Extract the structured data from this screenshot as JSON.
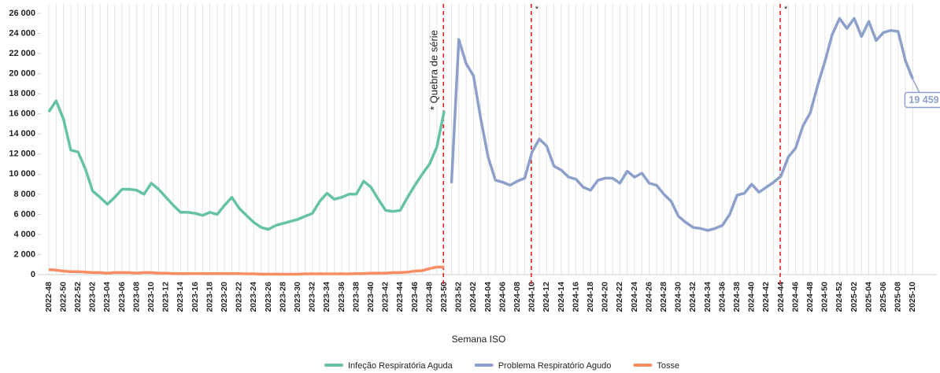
{
  "chart_data": {
    "type": "line",
    "x_label": "Semana ISO",
    "categories": [
      "2022-48",
      null,
      "2022-50",
      null,
      "2022-52",
      null,
      "2023-02",
      null,
      "2023-04",
      null,
      "2023-06",
      null,
      "2023-08",
      null,
      "2023-10",
      null,
      "2023-12",
      null,
      "2023-14",
      null,
      "2023-16",
      null,
      "2023-18",
      null,
      "2023-20",
      null,
      "2023-22",
      null,
      "2023-24",
      null,
      "2023-26",
      null,
      "2023-28",
      null,
      "2023-30",
      null,
      "2023-32",
      null,
      "2023-34",
      null,
      "2023-36",
      null,
      "2023-38",
      null,
      "2023-40",
      null,
      "2023-42",
      null,
      "2023-44",
      null,
      "2023-46",
      null,
      "2023-48",
      null,
      "2023-50",
      null,
      "2023-52",
      null,
      "2024-02",
      null,
      "2024-04",
      null,
      "2024-06",
      null,
      "2024-08",
      null,
      "2024-10",
      null,
      "2024-12",
      null,
      "2024-14",
      null,
      "2024-16",
      null,
      "2024-18",
      null,
      "2024-20",
      null,
      "2024-22",
      null,
      "2024-24",
      null,
      "2024-26",
      null,
      "2024-28",
      null,
      "2024-30",
      null,
      "2024-32",
      null,
      "2024-34",
      null,
      "2024-36",
      null,
      "2024-38",
      null,
      "2024-40",
      null,
      "2024-42",
      null,
      "2024-44",
      null,
      "2024-46",
      null,
      "2024-48",
      null,
      "2024-50",
      null,
      "2024-52",
      null,
      "2025-02",
      null,
      "2025-04",
      null,
      "2025-06",
      null,
      "2025-08",
      null,
      "2025-10"
    ],
    "series": [
      {
        "name": "Infeção Respiratória Aguda",
        "color": "#66c2a5",
        "values": [
          16200,
          17300,
          15500,
          12400,
          12200,
          10500,
          8300,
          7700,
          7000,
          7700,
          8500,
          8500,
          8400,
          8000,
          9100,
          8500,
          7700,
          6900,
          6200,
          6200,
          6100,
          5900,
          6200,
          6000,
          6900,
          7700,
          6600,
          5900,
          5200,
          4700,
          4500,
          4900,
          5100,
          5300,
          5500,
          5800,
          6100,
          7300,
          8100,
          7500,
          7700,
          8000,
          8000,
          9300,
          8700,
          7500,
          6400,
          6300,
          6400,
          7700,
          8900,
          10000,
          11000,
          12700,
          16300,
          null,
          null,
          null,
          null,
          null,
          null,
          null,
          null,
          null,
          null,
          null,
          null,
          null,
          null,
          null,
          null,
          null,
          null,
          null,
          null,
          null,
          null,
          null,
          null,
          null,
          null,
          null,
          null,
          null,
          null,
          null,
          null,
          null,
          null,
          null,
          null,
          null,
          null,
          null,
          null,
          null,
          null,
          null,
          null,
          null,
          null,
          null,
          null,
          null,
          null,
          null,
          null,
          null,
          null,
          null,
          null,
          null,
          null,
          null,
          null,
          null,
          null,
          null,
          null
        ]
      },
      {
        "name": "Problema Respiratório Agudo",
        "color": "#8da0cb",
        "values": [
          null,
          null,
          null,
          null,
          null,
          null,
          null,
          null,
          null,
          null,
          null,
          null,
          null,
          null,
          null,
          null,
          null,
          null,
          null,
          null,
          null,
          null,
          null,
          null,
          null,
          null,
          null,
          null,
          null,
          null,
          null,
          null,
          null,
          null,
          null,
          null,
          null,
          null,
          null,
          null,
          null,
          null,
          null,
          null,
          null,
          null,
          null,
          null,
          null,
          null,
          null,
          null,
          null,
          null,
          null,
          9100,
          23400,
          21000,
          19800,
          15500,
          11700,
          9400,
          9200,
          8900,
          9300,
          9600,
          12200,
          13500,
          12800,
          10800,
          10400,
          9700,
          9500,
          8700,
          8400,
          9400,
          9600,
          9600,
          9100,
          10300,
          9700,
          10100,
          9100,
          8900,
          8000,
          7300,
          5800,
          5200,
          4700,
          4600,
          4400,
          4600,
          4900,
          6000,
          7900,
          8100,
          9000,
          8200,
          8700,
          9200,
          9800,
          11700,
          12600,
          14800,
          16100,
          18800,
          21200,
          23900,
          25500,
          24500,
          25500,
          23700,
          25200,
          23300,
          24100,
          24300,
          24200,
          21300,
          19459
        ],
        "value_labels": [
          null,
          null,
          null,
          null,
          null,
          null,
          null,
          null,
          null,
          null,
          null,
          null,
          null,
          null,
          null,
          null,
          null,
          null,
          null,
          null,
          null,
          null,
          null,
          null,
          null,
          null,
          null,
          null,
          null,
          null,
          null,
          null,
          null,
          null,
          null,
          null,
          null,
          null,
          null,
          null,
          null,
          null,
          null,
          null,
          null,
          null,
          null,
          null,
          null,
          null,
          null,
          null,
          null,
          null,
          null,
          null,
          null,
          null,
          null,
          null,
          null,
          null,
          null,
          null,
          null,
          null,
          null,
          null,
          null,
          null,
          null,
          null,
          null,
          null,
          null,
          null,
          null,
          null,
          null,
          null,
          null,
          null,
          null,
          null,
          null,
          null,
          null,
          null,
          null,
          null,
          null,
          null,
          null,
          null,
          null,
          null,
          null,
          null,
          null,
          null,
          null,
          null,
          null,
          null,
          null,
          null,
          null,
          null,
          null,
          null,
          null,
          null,
          null,
          null,
          null,
          null,
          null,
          null,
          "19 459"
        ]
      },
      {
        "name": "Tosse",
        "color": "#fc8d62",
        "values": [
          500,
          450,
          350,
          300,
          300,
          250,
          200,
          200,
          150,
          200,
          200,
          200,
          150,
          200,
          200,
          150,
          150,
          100,
          100,
          100,
          100,
          100,
          100,
          100,
          100,
          100,
          100,
          80,
          80,
          50,
          50,
          50,
          40,
          40,
          50,
          80,
          80,
          80,
          80,
          80,
          80,
          80,
          100,
          100,
          150,
          150,
          150,
          200,
          200,
          250,
          350,
          400,
          600,
          750,
          750,
          null,
          null,
          null,
          null,
          null,
          null,
          null,
          null,
          null,
          null,
          null,
          null,
          null,
          null,
          null,
          null,
          null,
          null,
          null,
          null,
          null,
          null,
          null,
          null,
          null,
          null,
          null,
          null,
          null,
          null,
          null,
          null,
          null,
          null,
          null,
          null,
          null,
          null,
          null,
          null,
          null,
          null,
          null,
          null,
          null,
          null,
          null,
          null,
          null,
          null,
          null,
          null,
          null,
          null,
          null,
          null,
          null,
          null,
          null,
          null,
          null,
          null,
          null,
          null
        ]
      }
    ],
    "ylim": [
      0,
      26000
    ],
    "yticks": [
      0,
      {
        "value": 2000,
        "label": "2 000"
      },
      {
        "value": 4000,
        "label": "4 000"
      },
      {
        "value": 6000,
        "label": "6 000"
      },
      {
        "value": 8000,
        "label": "8 000"
      },
      {
        "value": 10000,
        "label": "10 000"
      },
      {
        "value": 12000,
        "label": "12 000"
      },
      {
        "value": 14000,
        "label": "14 000"
      },
      {
        "value": 16000,
        "label": "16 000"
      },
      {
        "value": 18000,
        "label": "18 000"
      },
      {
        "value": 20000,
        "label": "20 000"
      },
      {
        "value": 22000,
        "label": "22 000"
      },
      {
        "value": 24000,
        "label": "24 000"
      },
      {
        "value": 26000,
        "label": "26 000"
      }
    ],
    "annotations": [
      {
        "text": "* Quebra de série"
      },
      {
        "text": "*"
      },
      {
        "text": "*"
      }
    ],
    "legend": "bottom"
  }
}
